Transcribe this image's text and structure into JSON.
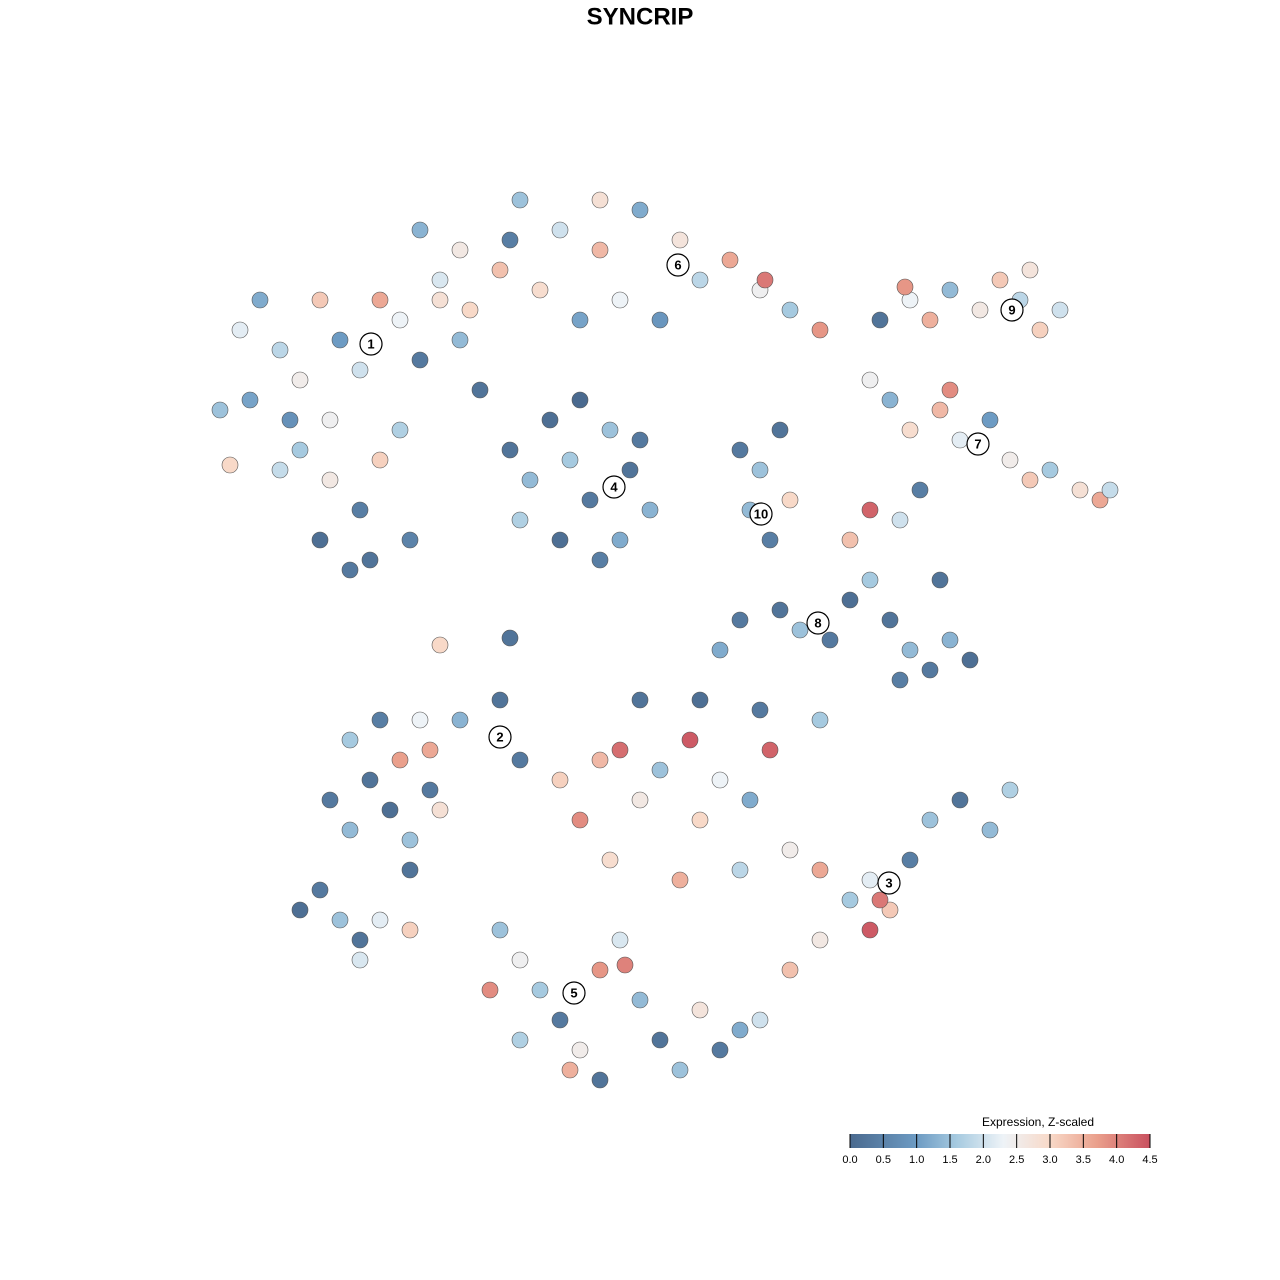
{
  "chart_data": {
    "type": "scatter",
    "title": "SYNCRIP",
    "colorbar_title": "Expression, Z-scaled",
    "xlim": [
      0,
      1280
    ],
    "ylim": [
      1280,
      0
    ],
    "zlim": [
      0,
      4.5
    ],
    "zticks": [
      {
        "value": 0,
        "label": "0.0"
      },
      0.5,
      {
        "value": 1,
        "label": "1.0"
      },
      1.5,
      {
        "value": 2,
        "label": "2.0"
      },
      2.5,
      {
        "value": 3,
        "label": "3.0"
      },
      3.5,
      {
        "value": 4,
        "label": "4.0"
      },
      4.5
    ],
    "colorscale": [
      [
        0,
        "#4a6a8f"
      ],
      [
        1,
        "#6d9bc3"
      ],
      [
        1.6,
        "#a6cae0"
      ],
      [
        2.3,
        "#eef3f7"
      ],
      [
        3,
        "#f8d9c8"
      ],
      [
        3.7,
        "#eaa08c"
      ],
      [
        4.5,
        "#c9505f"
      ]
    ],
    "x": [
      220,
      240,
      260,
      280,
      300,
      320,
      340,
      360,
      380,
      400,
      420,
      440,
      460,
      480,
      300,
      330,
      360,
      320,
      350,
      380,
      400,
      280,
      250,
      230,
      370,
      410,
      330,
      290,
      420,
      460,
      500,
      520,
      560,
      600,
      640,
      680,
      700,
      730,
      760,
      790,
      820,
      540,
      580,
      620,
      660,
      470,
      440,
      510,
      600,
      765,
      510,
      530,
      550,
      570,
      590,
      610,
      630,
      650,
      560,
      600,
      520,
      640,
      580,
      620,
      740,
      760,
      780,
      770,
      750,
      790,
      880,
      910,
      930,
      950,
      980,
      1000,
      1020,
      1040,
      1060,
      1030,
      905,
      870,
      890,
      910,
      940,
      960,
      990,
      1010,
      1030,
      1050,
      1080,
      1100,
      1110,
      950,
      870,
      900,
      920,
      850,
      780,
      800,
      830,
      850,
      870,
      890,
      910,
      930,
      950,
      970,
      900,
      940,
      720,
      740,
      330,
      350,
      370,
      390,
      410,
      430,
      350,
      380,
      420,
      460,
      500,
      520,
      400,
      430,
      410,
      440,
      560,
      600,
      620,
      640,
      660,
      690,
      720,
      770,
      750,
      700,
      790,
      820,
      850,
      870,
      890,
      910,
      930,
      960,
      990,
      1010,
      870,
      880,
      820,
      790,
      580,
      610,
      680,
      740,
      640,
      700,
      760,
      820,
      500,
      520,
      540,
      560,
      580,
      600,
      620,
      640,
      660,
      680,
      700,
      720,
      740,
      760,
      520,
      570,
      625,
      490,
      600,
      300,
      320,
      340,
      360,
      380,
      410,
      360,
      440,
      510
    ],
    "y": [
      410,
      330,
      300,
      350,
      380,
      300,
      340,
      370,
      300,
      320,
      360,
      300,
      340,
      390,
      450,
      480,
      510,
      540,
      570,
      460,
      430,
      470,
      400,
      465,
      560,
      540,
      420,
      420,
      230,
      250,
      270,
      200,
      230,
      250,
      210,
      240,
      280,
      260,
      290,
      310,
      330,
      290,
      320,
      300,
      320,
      310,
      280,
      240,
      200,
      280,
      450,
      480,
      420,
      460,
      500,
      430,
      470,
      510,
      540,
      560,
      520,
      440,
      400,
      540,
      450,
      470,
      430,
      540,
      510,
      500,
      320,
      300,
      320,
      290,
      310,
      280,
      300,
      330,
      310,
      270,
      287,
      380,
      400,
      430,
      410,
      440,
      420,
      460,
      480,
      470,
      490,
      500,
      490,
      390,
      510,
      520,
      490,
      540,
      610,
      630,
      640,
      600,
      580,
      620,
      650,
      670,
      640,
      660,
      680,
      580,
      650,
      620,
      800,
      830,
      780,
      810,
      840,
      790,
      740,
      720,
      720,
      720,
      700,
      760,
      760,
      750,
      870,
      810,
      780,
      760,
      750,
      800,
      770,
      740,
      780,
      750,
      800,
      820,
      850,
      870,
      900,
      880,
      910,
      860,
      820,
      800,
      830,
      790,
      930,
      900,
      940,
      970,
      820,
      860,
      880,
      870,
      700,
      700,
      710,
      720,
      930,
      960,
      990,
      1020,
      1050,
      970,
      940,
      1000,
      1040,
      1070,
      1010,
      1050,
      1030,
      1020,
      1040,
      1070,
      965,
      990,
      1080,
      910,
      890,
      920,
      940,
      920,
      930,
      960,
      645,
      638
    ],
    "values": [
      1.5,
      2.2,
      1.2,
      1.8,
      2.5,
      3.2,
      1.0,
      2.0,
      3.6,
      2.3,
      0.3,
      2.8,
      1.4,
      0.2,
      1.6,
      2.6,
      0.4,
      0.1,
      0.3,
      3.1,
      1.7,
      1.9,
      1.1,
      3.0,
      0.2,
      0.5,
      2.4,
      0.8,
      1.3,
      2.6,
      3.3,
      1.5,
      2.0,
      3.4,
      1.2,
      2.7,
      1.8,
      3.6,
      2.4,
      1.6,
      3.8,
      2.9,
      1.1,
      2.3,
      0.9,
      3.0,
      2.1,
      0.4,
      2.8,
      4.1,
      0.2,
      1.4,
      0.1,
      1.6,
      0.3,
      1.5,
      0.2,
      1.3,
      0.1,
      0.4,
      1.7,
      0.3,
      0.0,
      1.2,
      0.3,
      1.5,
      0.2,
      0.4,
      1.4,
      3.0,
      0.2,
      2.3,
      3.5,
      1.4,
      2.6,
      3.2,
      1.8,
      3.1,
      2.0,
      2.7,
      3.8,
      2.4,
      1.3,
      2.9,
      3.4,
      2.2,
      1.0,
      2.5,
      3.2,
      1.6,
      2.8,
      3.6,
      1.9,
      3.9,
      4.3,
      2.0,
      0.4,
      3.3,
      0.2,
      1.5,
      0.3,
      0.1,
      1.6,
      0.2,
      1.4,
      0.3,
      1.3,
      0.1,
      0.4,
      0.2,
      1.2,
      0.3,
      0.3,
      1.4,
      0.2,
      0.1,
      1.5,
      0.3,
      1.6,
      0.4,
      2.3,
      1.3,
      0.2,
      0.3,
      3.7,
      3.6,
      0.2,
      2.8,
      3.1,
      3.4,
      4.2,
      2.6,
      1.5,
      4.4,
      2.3,
      4.3,
      1.2,
      3.0,
      2.5,
      3.6,
      1.6,
      2.2,
      3.2,
      0.4,
      1.5,
      0.2,
      1.4,
      1.7,
      4.4,
      4.1,
      2.6,
      3.3,
      3.9,
      2.9,
      3.5,
      1.8,
      0.2,
      0.1,
      0.3,
      1.6,
      1.5,
      2.4,
      1.6,
      0.3,
      2.5,
      3.8,
      2.1,
      1.4,
      0.2,
      1.5,
      2.7,
      0.3,
      1.2,
      2.0,
      1.7,
      3.5,
      4.0,
      3.9,
      0.2,
      0.1,
      0.3,
      1.5,
      0.2,
      2.2,
      3.1,
      2.1,
      3.0,
      0.2
    ],
    "cluster_labels": [
      {
        "text": "1",
        "x": 371,
        "y": 344
      },
      {
        "text": "2",
        "x": 500,
        "y": 737
      },
      {
        "text": "3",
        "x": 889,
        "y": 883
      },
      {
        "text": "4",
        "x": 614,
        "y": 487
      },
      {
        "text": "5",
        "x": 574,
        "y": 993
      },
      {
        "text": "6",
        "x": 678,
        "y": 265
      },
      {
        "text": "7",
        "x": 978,
        "y": 444
      },
      {
        "text": "8",
        "x": 818,
        "y": 623
      },
      {
        "text": "9",
        "x": 1012,
        "y": 310
      },
      {
        "text": "10",
        "x": 761,
        "y": 514
      }
    ]
  }
}
